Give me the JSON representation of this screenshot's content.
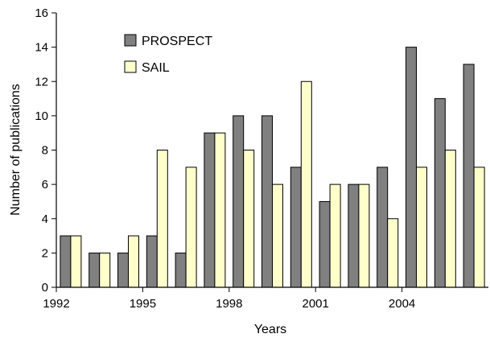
{
  "chart_data": {
    "type": "bar",
    "title": "",
    "xlabel": "Years",
    "ylabel": "Number of publications",
    "ylim": [
      0,
      16
    ],
    "yticks": [
      0,
      2,
      4,
      6,
      8,
      10,
      12,
      14,
      16
    ],
    "categories": [
      "1992",
      "1993",
      "1994",
      "1995",
      "1996",
      "1997",
      "1998",
      "1999",
      "2000",
      "2001",
      "2002",
      "2003",
      "2004",
      "2005",
      "2006"
    ],
    "xtick_labels": [
      "1992",
      "1995",
      "1998",
      "2001",
      "2004"
    ],
    "legend_position": "top-left",
    "grid": false,
    "series": [
      {
        "name": "PROSPECT",
        "color": "#808080",
        "values": [
          3,
          2,
          2,
          3,
          2,
          9,
          10,
          10,
          7,
          5,
          6,
          7,
          14,
          11,
          13
        ]
      },
      {
        "name": "SAIL",
        "color": "#ffffcc",
        "values": [
          3,
          2,
          3,
          8,
          7,
          9,
          8,
          6,
          12,
          6,
          6,
          4,
          7,
          8,
          7
        ]
      }
    ]
  }
}
